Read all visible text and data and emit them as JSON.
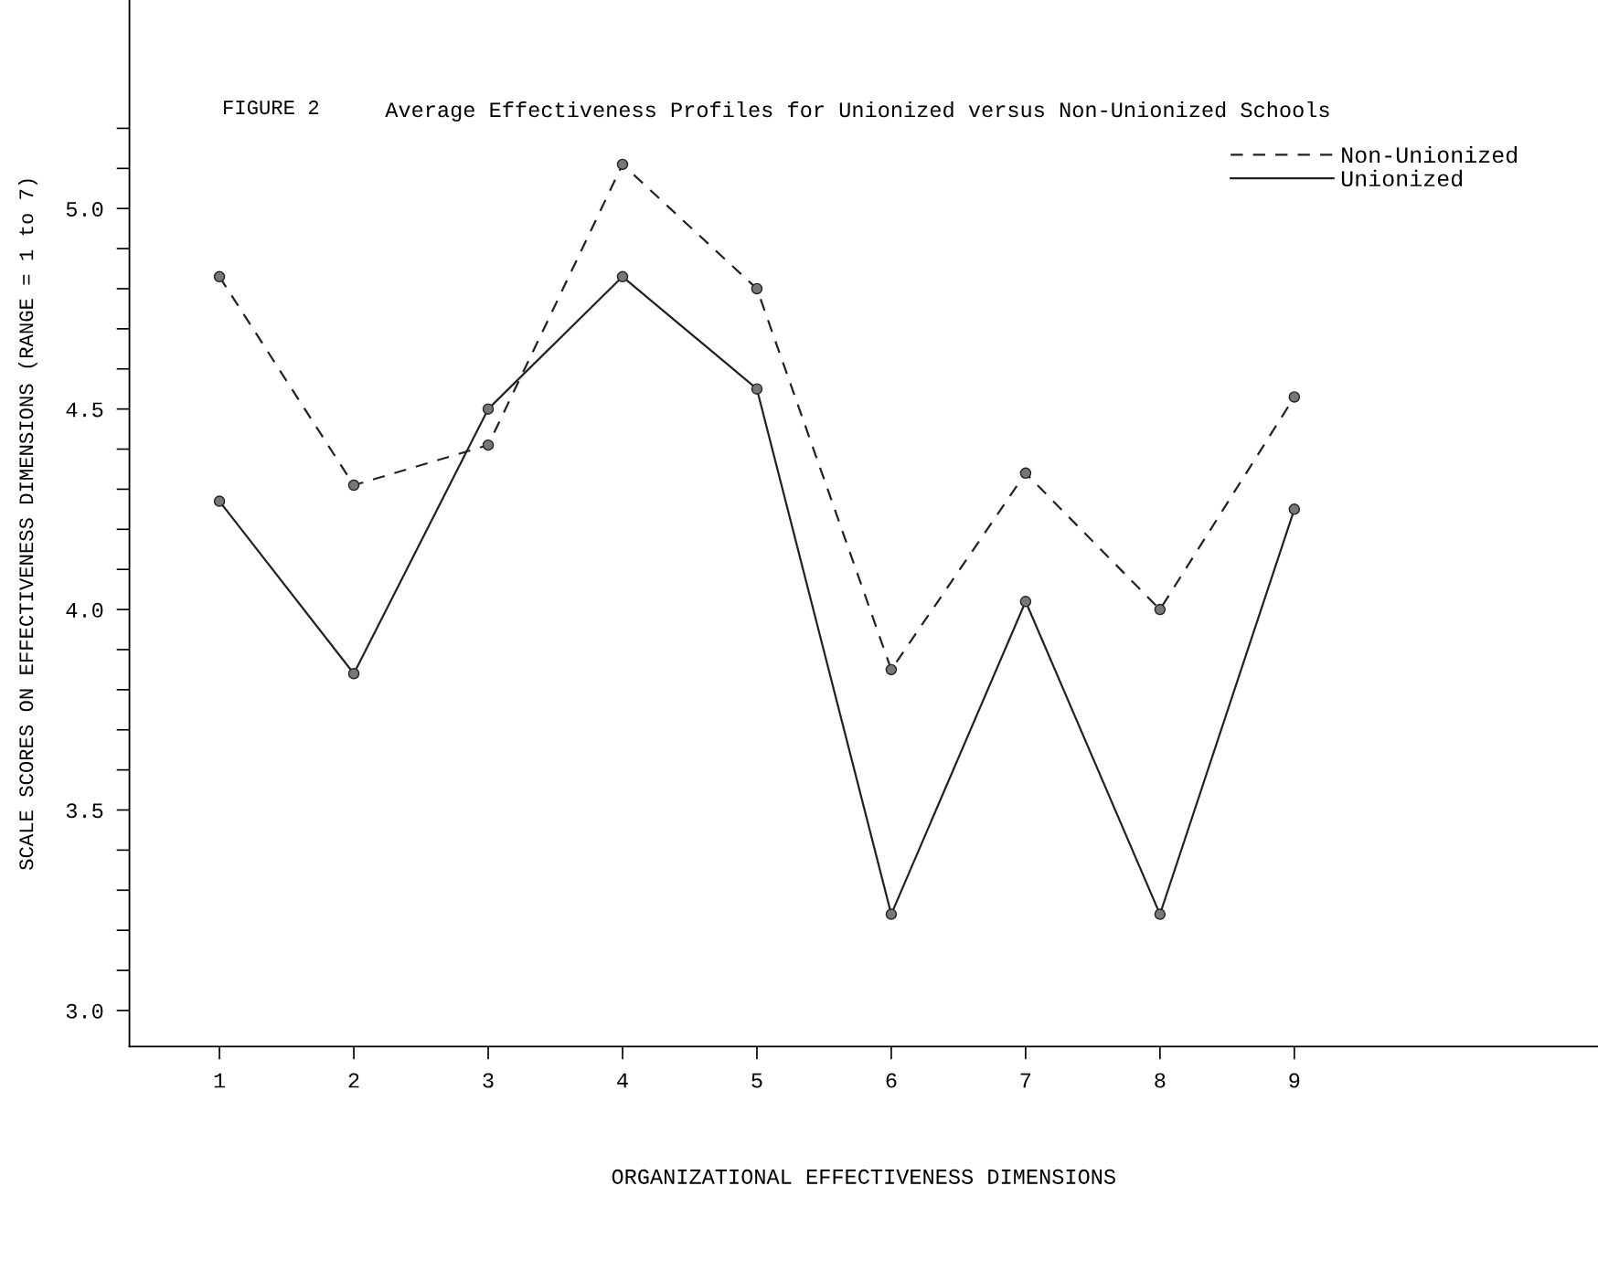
{
  "chart_data": {
    "type": "line",
    "title": "Average Effectiveness Profiles for Unionized versus Non-Unionized Schools",
    "annotations": [
      "FIGURE 2"
    ],
    "xlabel": "ORGANIZATIONAL EFFECTIVENESS DIMENSIONS",
    "ylabel": "SCALE SCORES ON EFFECTIVENESS DIMENSIONS (RANGE = 1 to 7)",
    "x": [
      1,
      2,
      3,
      4,
      5,
      6,
      7,
      8,
      9
    ],
    "series": [
      {
        "name": "Non-Unionized",
        "color": "#222222",
        "line_style": "dashed",
        "values": [
          4.83,
          4.31,
          4.41,
          5.11,
          4.8,
          3.85,
          4.34,
          4.0,
          4.53
        ]
      },
      {
        "name": "Unionized",
        "color": "#222222",
        "line_style": "solid",
        "values": [
          4.27,
          3.84,
          4.5,
          4.83,
          4.55,
          3.24,
          4.02,
          3.24,
          4.25
        ]
      }
    ],
    "marker": "circle",
    "legend": "top right",
    "grid": false,
    "xlim": [
      0.33,
      11.26
    ],
    "xticks": [
      1,
      2,
      3,
      4,
      5,
      6,
      7,
      8,
      9
    ],
    "ylim": [
      2.91,
      5.52
    ],
    "yticks": [
      {
        "value": 3.0,
        "label": "3.0"
      },
      {
        "value": 3.1,
        "label": null
      },
      {
        "value": 3.2,
        "label": null
      },
      {
        "value": 3.3,
        "label": null
      },
      {
        "value": 3.4,
        "label": null
      },
      3.5,
      {
        "value": 3.6,
        "label": null
      },
      {
        "value": 3.7,
        "label": null
      },
      {
        "value": 3.8,
        "label": null
      },
      {
        "value": 3.9,
        "label": null
      },
      {
        "value": 4.0,
        "label": "4.0"
      },
      {
        "value": 4.1,
        "label": null
      },
      {
        "value": 4.2,
        "label": null
      },
      {
        "value": 4.3,
        "label": null
      },
      {
        "value": 4.4,
        "label": null
      },
      4.5,
      {
        "value": 4.6,
        "label": null
      },
      {
        "value": 4.7,
        "label": null
      },
      {
        "value": 4.8,
        "label": null
      },
      {
        "value": 4.9,
        "label": null
      },
      {
        "value": 5.0,
        "label": "5.0"
      },
      {
        "value": 5.1,
        "label": null
      },
      {
        "value": 5.2,
        "label": null
      }
    ]
  }
}
